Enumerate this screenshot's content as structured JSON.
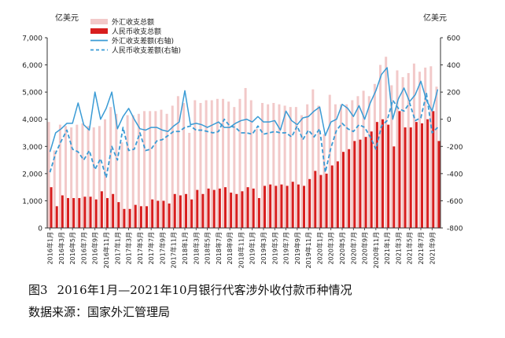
{
  "caption": {
    "figure_no": "图3",
    "title": "2016年1月—2021年10月银行代客涉外收付款币种情况",
    "source": "数据来源：国家外汇管理局"
  },
  "chart_data": {
    "type": "bar",
    "y_left_unit": "亿美元",
    "y_right_unit": "亿美元",
    "ylim_left": [
      0,
      7000
    ],
    "ylim_right": [
      -800,
      600
    ],
    "yticks_left": [
      "0",
      "1,000",
      "2,000",
      "3,000",
      "4,000",
      "5,000",
      "6,000",
      "7,000"
    ],
    "yticks_right": [
      "-800",
      "-600",
      "-400",
      "-200",
      "0",
      "200",
      "400",
      "600"
    ],
    "legend_position": "top-left",
    "categories": [
      "2016年1月",
      "2016年2月",
      "2016年3月",
      "2016年4月",
      "2016年5月",
      "2016年6月",
      "2016年7月",
      "2016年8月",
      "2016年9月",
      "2016年10月",
      "2016年11月",
      "2016年12月",
      "2017年1月",
      "2017年2月",
      "2017年3月",
      "2017年4月",
      "2017年5月",
      "2017年6月",
      "2017年7月",
      "2017年8月",
      "2017年9月",
      "2017年10月",
      "2017年11月",
      "2017年12月",
      "2018年1月",
      "2018年2月",
      "2018年3月",
      "2018年4月",
      "2018年5月",
      "2018年6月",
      "2018年7月",
      "2018年8月",
      "2018年9月",
      "2018年10月",
      "2018年11月",
      "2018年12月",
      "2019年1月",
      "2019年2月",
      "2019年3月",
      "2019年4月",
      "2019年5月",
      "2019年6月",
      "2019年7月",
      "2019年8月",
      "2019年9月",
      "2019年10月",
      "2019年11月",
      "2019年12月",
      "2020年1月",
      "2020年2月",
      "2020年3月",
      "2020年4月",
      "2020年5月",
      "2020年6月",
      "2020年7月",
      "2020年8月",
      "2020年9月",
      "2020年10月",
      "2020年11月",
      "2020年12月",
      "2021年1月",
      "2021年2月",
      "2021年3月",
      "2021年4月",
      "2021年5月",
      "2021年6月",
      "2021年7月",
      "2021年8月",
      "2021年9月",
      "2021年10月"
    ],
    "x_tick_labels": [
      "2016年1月",
      "2016年3月",
      "2016年5月",
      "2016年7月",
      "2016年9月",
      "2016年11月",
      "2017年1月",
      "2017年3月",
      "2017年5月",
      "2017年7月",
      "2017年9月",
      "2017年11月",
      "2018年1月",
      "2018年3月",
      "2018年5月",
      "2018年7月",
      "2018年9月",
      "2018年11月",
      "2019年1月",
      "2019年3月",
      "2019年5月",
      "2019年7月",
      "2019年9月",
      "2019年11月",
      "2020年1月",
      "2020年3月",
      "2020年5月",
      "2020年7月",
      "2020年9月",
      "2020年11月",
      "2021年1月",
      "2021年3月",
      "2021年5月",
      "2021年7月",
      "2021年9月"
    ],
    "series": [
      {
        "name": "外汇收支总额",
        "type": "bar",
        "axis": "left",
        "color": "#f2c9c9",
        "values": [
          3900,
          2850,
          3800,
          3750,
          3700,
          3800,
          3850,
          3750,
          3700,
          3750,
          4000,
          4450,
          4200,
          3150,
          4150,
          4150,
          4200,
          4300,
          4300,
          4300,
          4350,
          4200,
          4500,
          4850,
          4600,
          3500,
          4700,
          4600,
          4700,
          4700,
          4750,
          4750,
          4650,
          4450,
          4750,
          5150,
          4700,
          3650,
          4600,
          4550,
          4600,
          4550,
          4500,
          4450,
          4450,
          4150,
          4550,
          5100,
          4500,
          3450,
          4900,
          4550,
          4550,
          4550,
          4700,
          4850,
          5050,
          4850,
          5300,
          6000,
          6300,
          5250,
          5800,
          5550,
          5700,
          6050,
          5750,
          5900,
          5950,
          5200
        ]
      },
      {
        "name": "人民币收支总额",
        "type": "bar",
        "axis": "left",
        "color": "#d81e1e",
        "values": [
          1500,
          800,
          1200,
          1100,
          1100,
          1100,
          1150,
          1150,
          1050,
          1350,
          1100,
          1250,
          950,
          700,
          700,
          850,
          800,
          800,
          1050,
          1000,
          1000,
          900,
          1250,
          1200,
          1250,
          1050,
          1400,
          1250,
          1450,
          1400,
          1450,
          1500,
          1300,
          1250,
          1350,
          1500,
          1450,
          1100,
          1550,
          1600,
          1550,
          1600,
          1550,
          1700,
          1600,
          1550,
          1800,
          2100,
          1950,
          2000,
          2300,
          2450,
          2800,
          2900,
          3200,
          3250,
          3350,
          3550,
          3900,
          4000,
          3800,
          3000,
          4300,
          3700,
          3700,
          3900,
          3850,
          4000,
          4300,
          3200
        ]
      },
      {
        "name": "外汇收支差额(右轴)",
        "type": "line",
        "axis": "right",
        "color": "#3a9bd5",
        "values": [
          -240,
          -100,
          -70,
          -30,
          -30,
          120,
          -40,
          -80,
          200,
          0,
          80,
          200,
          -70,
          20,
          80,
          0,
          -70,
          -80,
          -60,
          -60,
          -80,
          -90,
          -50,
          -20,
          210,
          -40,
          -30,
          -40,
          -60,
          -40,
          -20,
          -60,
          -60,
          -30,
          -10,
          0,
          -20,
          20,
          -20,
          -20,
          -10,
          -80,
          60,
          -10,
          -40,
          10,
          20,
          60,
          90,
          -120,
          -20,
          0,
          110,
          80,
          20,
          100,
          0,
          120,
          210,
          330,
          380,
          0,
          150,
          230,
          130,
          180,
          280,
          140,
          60,
          220
        ]
      },
      {
        "name": "人民币收支差额(右轴)",
        "type": "line",
        "axis": "right",
        "color": "#3a9bd5",
        "values": [
          -390,
          -250,
          -160,
          -80,
          -220,
          -240,
          -300,
          -230,
          -370,
          -290,
          -430,
          -200,
          -300,
          -60,
          -230,
          -220,
          -100,
          -230,
          -220,
          -160,
          -150,
          -120,
          -90,
          -90,
          -60,
          -50,
          -80,
          -80,
          -90,
          -100,
          -90,
          0,
          -50,
          -60,
          -100,
          -100,
          -110,
          -50,
          -110,
          -100,
          -90,
          -100,
          -100,
          -130,
          -50,
          -150,
          -80,
          -130,
          -70,
          -390,
          -210,
          -80,
          -30,
          -70,
          -90,
          -40,
          -60,
          -130,
          -220,
          -50,
          -10,
          140,
          80,
          60,
          120,
          -10,
          10,
          190,
          -100,
          -60
        ]
      }
    ]
  }
}
